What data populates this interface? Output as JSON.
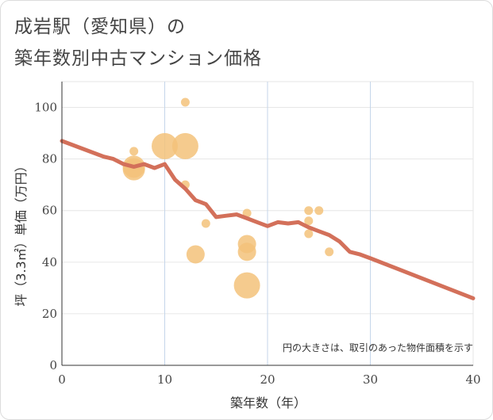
{
  "title_line1": "成岩駅（愛知県）の",
  "title_line2": "築年数別中古マンション価格",
  "chart_data": {
    "type": "scatter",
    "xlabel": "築年数（年）",
    "ylabel": "坪（3.3㎡）単価（万円）",
    "xlim": [
      0,
      40
    ],
    "ylim": [
      0,
      110
    ],
    "x_ticks": [
      "0",
      "10",
      "20",
      "30",
      "40"
    ],
    "y_ticks": [
      "0",
      "20",
      "40",
      "60",
      "80",
      "100"
    ],
    "note": "円の大きさは、取引のあった物件面積を示す",
    "grid": true,
    "colors": {
      "bubble": "#f3c27a",
      "line": "#d3705a"
    },
    "bubbles": [
      {
        "x": 7,
        "y": 83,
        "size": 1
      },
      {
        "x": 7,
        "y": 77,
        "size": 4
      },
      {
        "x": 7,
        "y": 76,
        "size": 4
      },
      {
        "x": 10,
        "y": 85,
        "size": 5
      },
      {
        "x": 12,
        "y": 102,
        "size": 1
      },
      {
        "x": 12,
        "y": 85,
        "size": 5
      },
      {
        "x": 12,
        "y": 70,
        "size": 1
      },
      {
        "x": 13,
        "y": 43,
        "size": 3
      },
      {
        "x": 14,
        "y": 55,
        "size": 1
      },
      {
        "x": 18,
        "y": 59,
        "size": 1
      },
      {
        "x": 18,
        "y": 47,
        "size": 3
      },
      {
        "x": 18,
        "y": 44,
        "size": 3
      },
      {
        "x": 18,
        "y": 31,
        "size": 5
      },
      {
        "x": 24,
        "y": 60,
        "size": 1
      },
      {
        "x": 24,
        "y": 56,
        "size": 1
      },
      {
        "x": 24,
        "y": 51,
        "size": 1
      },
      {
        "x": 25,
        "y": 60,
        "size": 1
      },
      {
        "x": 26,
        "y": 44,
        "size": 1
      }
    ],
    "trend": {
      "x": [
        0,
        2,
        4,
        5,
        6,
        7,
        8,
        9,
        10,
        11,
        12,
        13,
        14,
        15,
        16,
        17,
        18,
        19,
        20,
        21,
        22,
        23,
        24,
        25,
        26,
        27,
        28,
        29,
        30,
        40
      ],
      "y": [
        87,
        84,
        81,
        80,
        78,
        77,
        78,
        76.5,
        78,
        72,
        68.5,
        64,
        62.5,
        57.5,
        58,
        58.5,
        57,
        55.5,
        54,
        55.5,
        55,
        55.5,
        53.5,
        52,
        50.5,
        48,
        44,
        43,
        41.5,
        26
      ]
    }
  }
}
